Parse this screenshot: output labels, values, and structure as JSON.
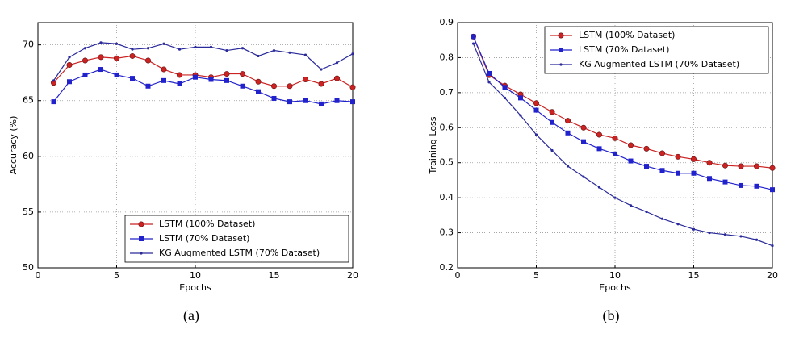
{
  "chart_data": [
    {
      "type": "line",
      "caption": "(a)",
      "xlabel": "Epochs",
      "ylabel": "Accuracy (%)",
      "xlim": [
        0,
        20
      ],
      "xticks": [
        0,
        5,
        10,
        15,
        20
      ],
      "ylim": [
        50,
        72
      ],
      "yticks": [
        50,
        55,
        60,
        65,
        70
      ],
      "grid": true,
      "legend": "lower right",
      "x": [
        1,
        2,
        3,
        4,
        5,
        6,
        7,
        8,
        9,
        10,
        11,
        12,
        13,
        14,
        15,
        16,
        17,
        18,
        19,
        20
      ],
      "series": [
        {
          "name": "LSTM (100% Dataset)",
          "color": "#cc2222",
          "marker": "o",
          "values": [
            66.6,
            68.2,
            68.6,
            68.9,
            68.8,
            69.0,
            68.6,
            67.8,
            67.3,
            67.3,
            67.1,
            67.4,
            67.4,
            66.7,
            66.3,
            66.3,
            66.9,
            66.5,
            67.0,
            66.2
          ]
        },
        {
          "name": "LSTM (70% Dataset)",
          "color": "#2222cc",
          "marker": "s",
          "values": [
            64.9,
            66.7,
            67.3,
            67.8,
            67.3,
            67.0,
            66.3,
            66.8,
            66.5,
            67.1,
            66.9,
            66.8,
            66.3,
            65.8,
            65.2,
            64.9,
            65.0,
            64.7,
            65.0,
            64.9
          ]
        },
        {
          "name": "KG Augmented LSTM (70% Dataset)",
          "color": "#2a2a9a",
          "marker": "*",
          "values": [
            66.8,
            68.9,
            69.7,
            70.2,
            70.1,
            69.6,
            69.7,
            70.1,
            69.6,
            69.8,
            69.8,
            69.5,
            69.7,
            69.0,
            69.5,
            69.3,
            69.1,
            67.8,
            68.4,
            69.2
          ]
        }
      ]
    },
    {
      "type": "line",
      "caption": "(b)",
      "xlabel": "Epochs",
      "ylabel": "Training Loss",
      "xlim": [
        0,
        20
      ],
      "xticks": [
        0,
        5,
        10,
        15,
        20
      ],
      "ylim": [
        0.2,
        0.9
      ],
      "yticks": [
        0.2,
        0.3,
        0.4,
        0.5,
        0.6,
        0.7,
        0.8,
        0.9
      ],
      "grid": true,
      "legend": "upper right",
      "x": [
        1,
        2,
        3,
        4,
        5,
        6,
        7,
        8,
        9,
        10,
        11,
        12,
        13,
        14,
        15,
        16,
        17,
        18,
        19,
        20
      ],
      "series": [
        {
          "name": "LSTM (100% Dataset)",
          "color": "#cc2222",
          "marker": "o",
          "values": [
            0.86,
            0.75,
            0.72,
            0.695,
            0.67,
            0.645,
            0.62,
            0.6,
            0.58,
            0.57,
            0.55,
            0.54,
            0.527,
            0.517,
            0.51,
            0.5,
            0.492,
            0.49,
            0.49,
            0.485
          ]
        },
        {
          "name": "LSTM (70% Dataset)",
          "color": "#2222cc",
          "marker": "s",
          "values": [
            0.86,
            0.755,
            0.715,
            0.685,
            0.65,
            0.615,
            0.585,
            0.56,
            0.54,
            0.525,
            0.505,
            0.49,
            0.478,
            0.47,
            0.47,
            0.455,
            0.445,
            0.435,
            0.433,
            0.423
          ]
        },
        {
          "name": "KG Augmented LSTM (70% Dataset)",
          "color": "#2a2a9a",
          "marker": "*",
          "values": [
            0.84,
            0.73,
            0.685,
            0.635,
            0.58,
            0.535,
            0.49,
            0.46,
            0.43,
            0.4,
            0.378,
            0.36,
            0.34,
            0.325,
            0.31,
            0.3,
            0.295,
            0.29,
            0.28,
            0.263
          ]
        }
      ]
    }
  ]
}
